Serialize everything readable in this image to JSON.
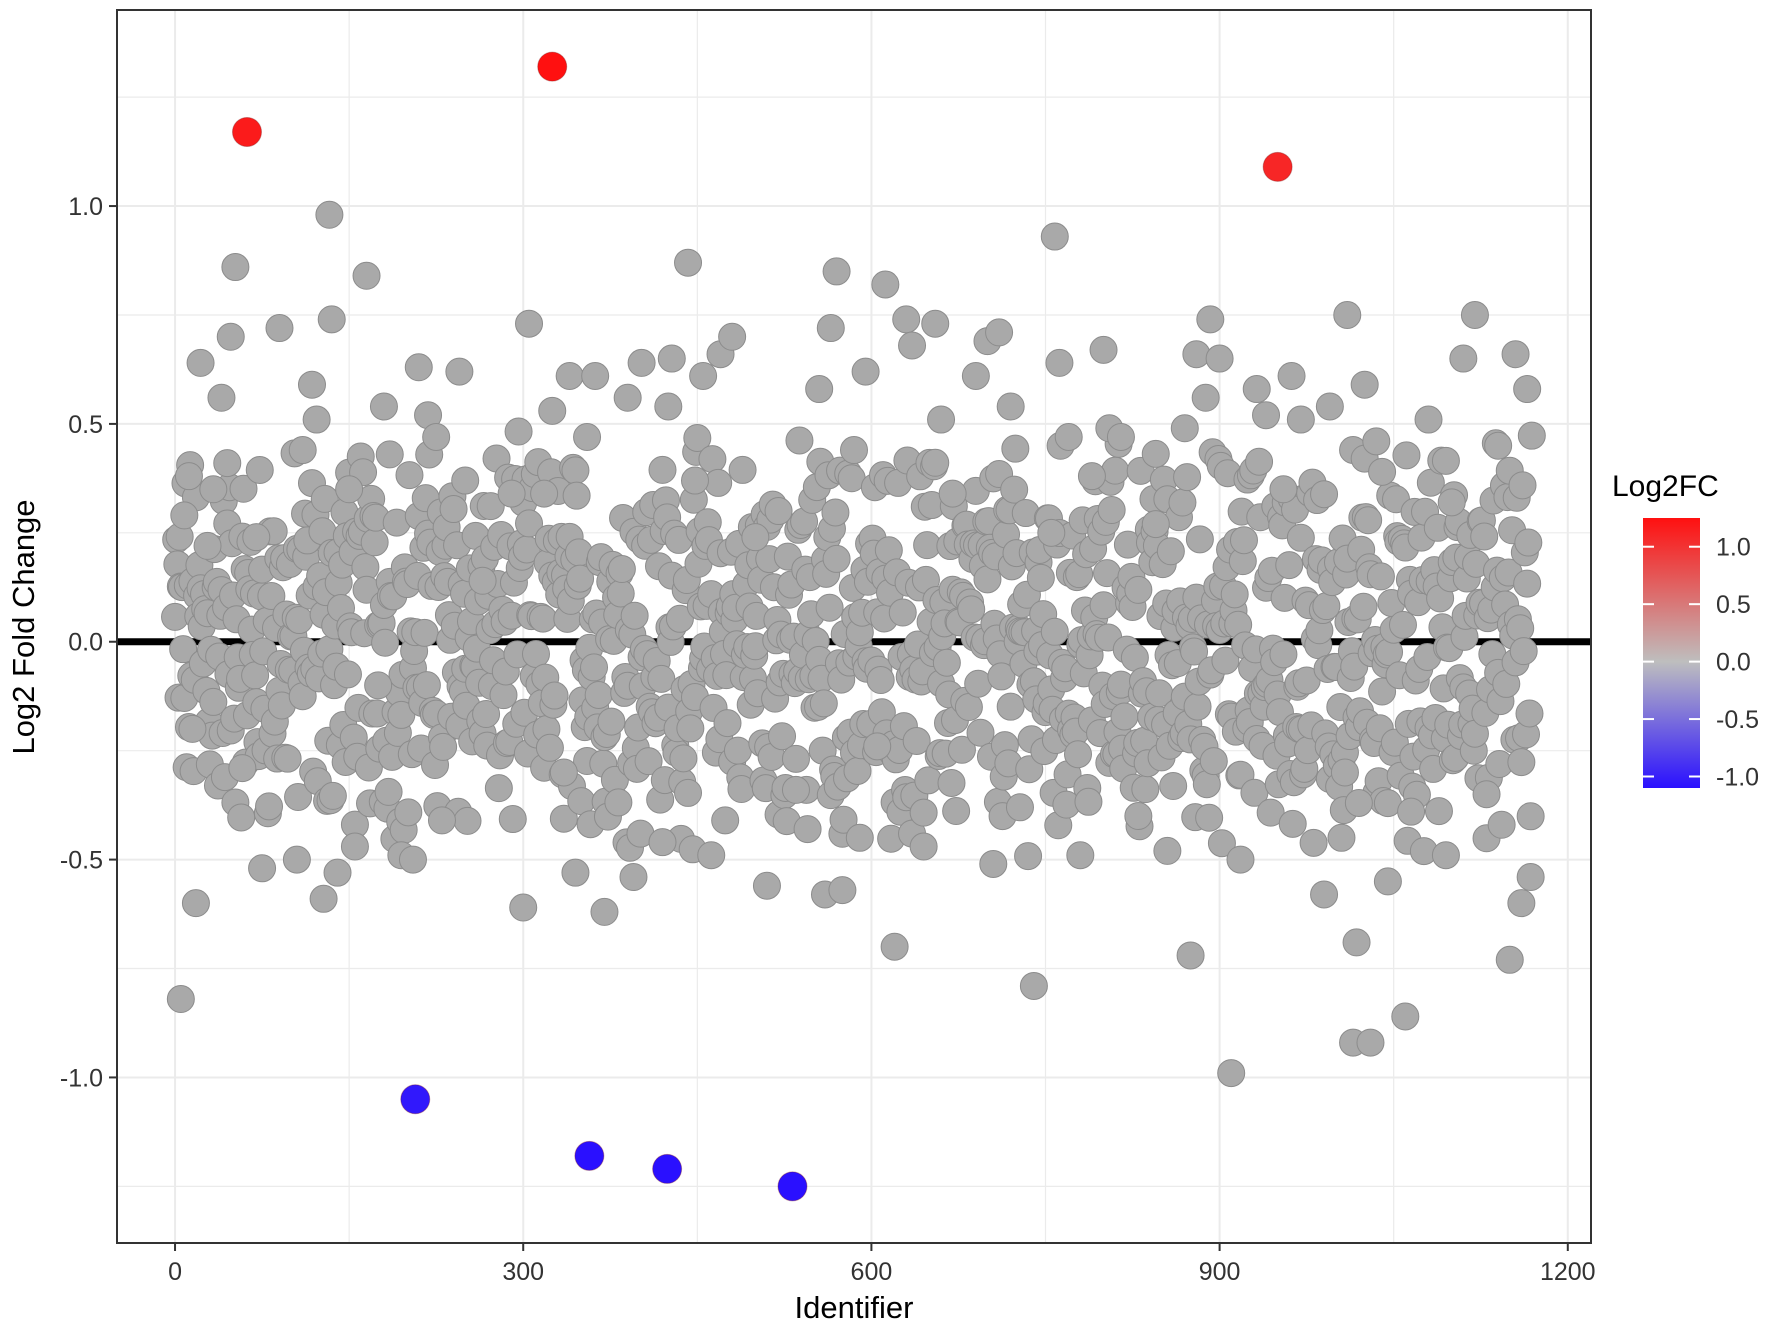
{
  "chart_data": {
    "type": "scatter",
    "title": "",
    "xlabel": "Identifier",
    "ylabel": "Log2 Fold Change",
    "xlim": [
      -50,
      1220
    ],
    "ylim": [
      -1.38,
      1.45
    ],
    "x_ticks": [
      0,
      300,
      600,
      900,
      1200
    ],
    "x_tick_labels": [
      "0",
      "300",
      "600",
      "900",
      "1200"
    ],
    "y_ticks": [
      1.0,
      0.5,
      0.0,
      -0.5,
      -1.0
    ],
    "y_tick_labels": [
      "1.0",
      "0.5",
      "0.0",
      "-0.5",
      "-1.0"
    ],
    "grid": true,
    "reference_line_y": 0,
    "legend": {
      "title": "Log2FC",
      "position": "right",
      "type": "colorbar",
      "range": [
        -1.1,
        1.25
      ],
      "ticks": [
        1.0,
        0.5,
        0.0,
        -0.5,
        -1.0
      ],
      "tick_labels": [
        "1.0",
        "0.5",
        "0.0",
        "-0.5",
        "-1.0"
      ],
      "colors": {
        "high": "#ff1010",
        "mid": "#bebebe",
        "low": "#2a10ff"
      }
    },
    "point_color_default": "#a9a9a9",
    "highlighted_points": [
      {
        "x": 62,
        "y": 1.17
      },
      {
        "x": 325,
        "y": 1.32
      },
      {
        "x": 950,
        "y": 1.09
      },
      {
        "x": 207,
        "y": -1.05
      },
      {
        "x": 357,
        "y": -1.18
      },
      {
        "x": 424,
        "y": -1.21
      },
      {
        "x": 532,
        "y": -1.25
      }
    ],
    "points": [
      [
        5,
        -0.82
      ],
      [
        8,
        0.29
      ],
      [
        12,
        0.38
      ],
      [
        15,
        -0.2
      ],
      [
        18,
        -0.6
      ],
      [
        22,
        0.64
      ],
      [
        28,
        0.22
      ],
      [
        33,
        0.35
      ],
      [
        40,
        0.56
      ],
      [
        45,
        0.41
      ],
      [
        48,
        0.7
      ],
      [
        52,
        0.86
      ],
      [
        58,
        -0.29
      ],
      [
        70,
        0.24
      ],
      [
        75,
        -0.52
      ],
      [
        90,
        0.72
      ],
      [
        105,
        -0.5
      ],
      [
        110,
        0.44
      ],
      [
        118,
        0.59
      ],
      [
        122,
        0.51
      ],
      [
        128,
        -0.59
      ],
      [
        133,
        0.98
      ],
      [
        135,
        0.74
      ],
      [
        140,
        -0.53
      ],
      [
        150,
        0.35
      ],
      [
        155,
        -0.47
      ],
      [
        165,
        0.84
      ],
      [
        175,
        -0.1
      ],
      [
        180,
        0.54
      ],
      [
        185,
        0.43
      ],
      [
        195,
        -0.49
      ],
      [
        205,
        -0.5
      ],
      [
        210,
        0.63
      ],
      [
        218,
        0.52
      ],
      [
        225,
        0.47
      ],
      [
        230,
        -0.41
      ],
      [
        245,
        0.62
      ],
      [
        250,
        0.37
      ],
      [
        265,
        0.14
      ],
      [
        290,
        0.34
      ],
      [
        300,
        -0.61
      ],
      [
        305,
        0.73
      ],
      [
        318,
        0.34
      ],
      [
        325,
        0.53
      ],
      [
        335,
        -0.3
      ],
      [
        340,
        0.61
      ],
      [
        345,
        -0.53
      ],
      [
        355,
        0.47
      ],
      [
        362,
        0.61
      ],
      [
        370,
        -0.62
      ],
      [
        390,
        0.56
      ],
      [
        395,
        -0.54
      ],
      [
        402,
        0.64
      ],
      [
        420,
        -0.46
      ],
      [
        425,
        0.54
      ],
      [
        428,
        0.65
      ],
      [
        442,
        0.87
      ],
      [
        448,
        0.37
      ],
      [
        455,
        0.61
      ],
      [
        462,
        -0.49
      ],
      [
        470,
        0.66
      ],
      [
        480,
        0.7
      ],
      [
        500,
        0.24
      ],
      [
        510,
        -0.56
      ],
      [
        520,
        0.3
      ],
      [
        535,
        -0.34
      ],
      [
        545,
        -0.43
      ],
      [
        555,
        0.58
      ],
      [
        560,
        -0.58
      ],
      [
        565,
        0.72
      ],
      [
        570,
        0.85
      ],
      [
        575,
        -0.57
      ],
      [
        585,
        0.44
      ],
      [
        590,
        -0.45
      ],
      [
        595,
        0.62
      ],
      [
        605,
        -0.24
      ],
      [
        612,
        0.82
      ],
      [
        620,
        -0.7
      ],
      [
        630,
        0.74
      ],
      [
        635,
        0.68
      ],
      [
        645,
        -0.47
      ],
      [
        655,
        0.73
      ],
      [
        660,
        0.51
      ],
      [
        670,
        0.34
      ],
      [
        690,
        0.61
      ],
      [
        700,
        0.69
      ],
      [
        705,
        -0.51
      ],
      [
        710,
        0.71
      ],
      [
        720,
        0.54
      ],
      [
        728,
        -0.38
      ],
      [
        740,
        -0.79
      ],
      [
        755,
        0.25
      ],
      [
        758,
        0.93
      ],
      [
        762,
        0.64
      ],
      [
        770,
        0.47
      ],
      [
        780,
        -0.49
      ],
      [
        790,
        0.38
      ],
      [
        800,
        0.67
      ],
      [
        805,
        0.49
      ],
      [
        815,
        0.47
      ],
      [
        830,
        -0.4
      ],
      [
        845,
        0.27
      ],
      [
        855,
        -0.48
      ],
      [
        870,
        0.49
      ],
      [
        875,
        -0.72
      ],
      [
        880,
        0.66
      ],
      [
        888,
        0.56
      ],
      [
        892,
        0.74
      ],
      [
        900,
        0.65
      ],
      [
        910,
        -0.99
      ],
      [
        918,
        -0.5
      ],
      [
        932,
        0.58
      ],
      [
        940,
        0.52
      ],
      [
        955,
        0.35
      ],
      [
        962,
        0.61
      ],
      [
        970,
        0.51
      ],
      [
        990,
        -0.58
      ],
      [
        995,
        0.54
      ],
      [
        1010,
        0.75
      ],
      [
        1018,
        -0.69
      ],
      [
        1025,
        0.59
      ],
      [
        1035,
        0.46
      ],
      [
        1040,
        0.39
      ],
      [
        1045,
        -0.55
      ],
      [
        1060,
        -0.86
      ],
      [
        1065,
        -0.39
      ],
      [
        1080,
        0.51
      ],
      [
        1095,
        -0.49
      ],
      [
        1100,
        0.32
      ],
      [
        1110,
        0.65
      ],
      [
        1120,
        0.75
      ],
      [
        1130,
        -0.35
      ],
      [
        1140,
        0.45
      ],
      [
        1150,
        -0.73
      ],
      [
        1155,
        0.66
      ],
      [
        1160,
        -0.6
      ],
      [
        1165,
        0.58
      ],
      [
        1168,
        -0.54
      ],
      [
        1015,
        -0.92
      ],
      [
        1030,
        -0.92
      ],
      [
        1020,
        -0.37
      ],
      [
        1005,
        -0.45
      ],
      [
        1008,
        -0.3
      ]
    ]
  }
}
